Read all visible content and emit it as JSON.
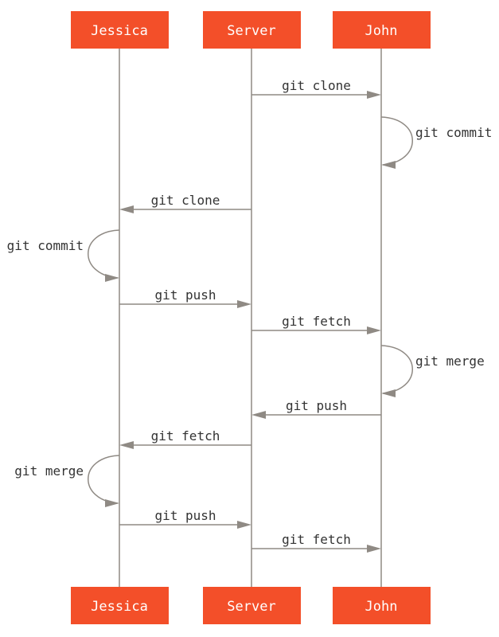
{
  "colors": {
    "actor_fill": "#F34F29",
    "line": "#8F8A84",
    "text": "#333333"
  },
  "actors": [
    "Jessica",
    "Server",
    "John"
  ],
  "messages": [
    {
      "from": "Server",
      "to": "John",
      "label": "git clone"
    },
    {
      "from": "John",
      "to": "John",
      "label": "git commit"
    },
    {
      "from": "Server",
      "to": "Jessica",
      "label": "git clone"
    },
    {
      "from": "Jessica",
      "to": "Jessica",
      "label": "git commit"
    },
    {
      "from": "Jessica",
      "to": "Server",
      "label": "git push"
    },
    {
      "from": "Server",
      "to": "John",
      "label": "git fetch"
    },
    {
      "from": "John",
      "to": "John",
      "label": "git merge"
    },
    {
      "from": "John",
      "to": "Server",
      "label": "git push"
    },
    {
      "from": "Server",
      "to": "Jessica",
      "label": "git fetch"
    },
    {
      "from": "Jessica",
      "to": "Jessica",
      "label": "git merge"
    },
    {
      "from": "Jessica",
      "to": "Server",
      "label": "git push"
    },
    {
      "from": "Server",
      "to": "John",
      "label": "git fetch"
    }
  ]
}
